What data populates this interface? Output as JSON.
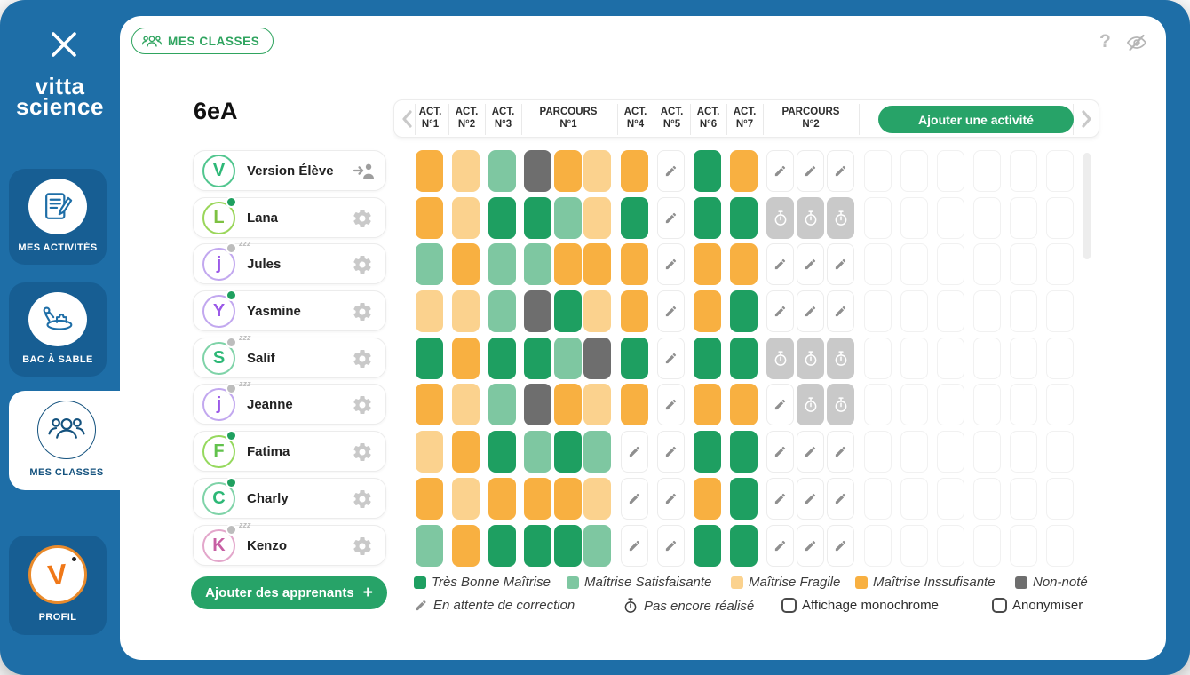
{
  "colors": {
    "sidebar_blue": "#1E6EA7",
    "tile_blue": "#175E93",
    "navy": "#14527E",
    "brand_green": "#27A368",
    "badge_green": "#2FA45F",
    "tbm": "#1E9F61",
    "ms": "#7EC7A1",
    "mf": "#FBD28E",
    "mi": "#F8B041",
    "nn": "#6E6E6E",
    "timer_bg": "#C9C9C9",
    "pencil_gray": "#8F8F8F"
  },
  "sidebar": {
    "logo_line1": "vitta",
    "logo_line2": "science",
    "items": [
      {
        "label": "MES ACTIVITÉS",
        "icon": "document-pencil-icon",
        "active": false
      },
      {
        "label": "BAC À SABLE",
        "icon": "sandbox-icon",
        "active": false
      },
      {
        "label": "MES CLASSES",
        "icon": "people-group-icon",
        "active": true
      },
      {
        "label": "PROFIL",
        "icon": "vittascience-v-icon",
        "active": false
      }
    ]
  },
  "topbar": {
    "badge": "MES CLASSES",
    "help": "?"
  },
  "main": {
    "class_name": "6eA",
    "add_activity": "Ajouter une activité",
    "add_learners": "Ajouter des apprenants",
    "add_learners_plus": "+",
    "columns": [
      {
        "line1": "ACT.",
        "line2": "N°1",
        "type": "act"
      },
      {
        "line1": "ACT.",
        "line2": "N°2",
        "type": "act"
      },
      {
        "line1": "ACT.",
        "line2": "N°3",
        "type": "act"
      },
      {
        "line1": "PARCOURS",
        "line2": "N°1",
        "type": "parcours"
      },
      {
        "line1": "ACT.",
        "line2": "N°4",
        "type": "act"
      },
      {
        "line1": "ACT.",
        "line2": "N°5",
        "type": "act"
      },
      {
        "line1": "ACT.",
        "line2": "N°6",
        "type": "act"
      },
      {
        "line1": "ACT.",
        "line2": "N°7",
        "type": "act"
      },
      {
        "line1": "PARCOURS",
        "line2": "N°2",
        "type": "parcours"
      }
    ],
    "students": [
      {
        "name": "Version Élève",
        "letter": "V",
        "letter_color": "#2EB877",
        "ring": "#52C68F",
        "status": "none",
        "action": "login"
      },
      {
        "name": "Lana",
        "letter": "L",
        "letter_color": "#7DC142",
        "ring": "#9AD65A",
        "status": "online",
        "action": "settings"
      },
      {
        "name": "Jules",
        "letter": "j",
        "letter_color": "#9B59E8",
        "ring": "#C2A8EF",
        "status": "sleep",
        "action": "settings"
      },
      {
        "name": "Yasmine",
        "letter": "Y",
        "letter_color": "#9B59E8",
        "ring": "#C2A8EF",
        "status": "online",
        "action": "settings"
      },
      {
        "name": "Salif",
        "letter": "S",
        "letter_color": "#2EB877",
        "ring": "#7FD3A8",
        "status": "sleep",
        "action": "settings"
      },
      {
        "name": "Jeanne",
        "letter": "j",
        "letter_color": "#9B59E8",
        "ring": "#C2A8EF",
        "status": "sleep",
        "action": "settings"
      },
      {
        "name": "Fatima",
        "letter": "F",
        "letter_color": "#62C24C",
        "ring": "#96D95E",
        "status": "online",
        "action": "settings"
      },
      {
        "name": "Charly",
        "letter": "C",
        "letter_color": "#2EB877",
        "ring": "#7FD3A8",
        "status": "online",
        "action": "settings"
      },
      {
        "name": "Kenzo",
        "letter": "K",
        "letter_color": "#C75FA3",
        "ring": "#E3A7CB",
        "status": "sleep",
        "action": "settings"
      }
    ],
    "grid_rows": [
      [
        "mi",
        "mf",
        "ms",
        "nn",
        "mi",
        "mf",
        "mi",
        "pen",
        "tbm",
        "mi",
        "pen",
        "pen",
        "pen"
      ],
      [
        "mi",
        "mf",
        "tbm",
        "tbm",
        "ms",
        "mf",
        "tbm",
        "pen",
        "tbm",
        "tbm",
        "tim",
        "tim",
        "tim"
      ],
      [
        "ms",
        "mi",
        "ms",
        "ms",
        "mi",
        "mi",
        "mi",
        "pen",
        "mi",
        "mi",
        "pen",
        "pen",
        "pen"
      ],
      [
        "mf",
        "mf",
        "ms",
        "nn",
        "tbm",
        "mf",
        "mi",
        "pen",
        "mi",
        "tbm",
        "pen",
        "pen",
        "pen"
      ],
      [
        "tbm",
        "mi",
        "tbm",
        "tbm",
        "ms",
        "nn",
        "tbm",
        "pen",
        "tbm",
        "tbm",
        "tim",
        "tim",
        "tim"
      ],
      [
        "mi",
        "mf",
        "ms",
        "nn",
        "mi",
        "mf",
        "mi",
        "pen",
        "mi",
        "mi",
        "pen",
        "tim",
        "tim"
      ],
      [
        "mf",
        "mi",
        "tbm",
        "ms",
        "tbm",
        "ms",
        "pen",
        "pen",
        "tbm",
        "tbm",
        "pen",
        "pen",
        "pen"
      ],
      [
        "mi",
        "mf",
        "mi",
        "mi",
        "mi",
        "mf",
        "pen",
        "pen",
        "mi",
        "tbm",
        "pen",
        "pen",
        "pen"
      ],
      [
        "ms",
        "mi",
        "tbm",
        "tbm",
        "tbm",
        "ms",
        "pen",
        "pen",
        "tbm",
        "tbm",
        "pen",
        "pen",
        "pen"
      ]
    ],
    "empty_columns_per_row": 6,
    "legend": {
      "swatches": [
        {
          "code": "tbm",
          "label": "Très Bonne Maîtrise"
        },
        {
          "code": "ms",
          "label": "Maîtrise Satisfaisante"
        },
        {
          "code": "mf",
          "label": "Maîtrise Fragile"
        },
        {
          "code": "mi",
          "label": "Maîtrise Inssufisante"
        },
        {
          "code": "nn",
          "label": "Non-noté"
        }
      ],
      "pencil_label": "En attente de correction",
      "timer_label": "Pas encore réalisé",
      "checkbox_monochrome": "Affichage monochrome",
      "checkbox_anonymize": "Anonymiser"
    }
  }
}
